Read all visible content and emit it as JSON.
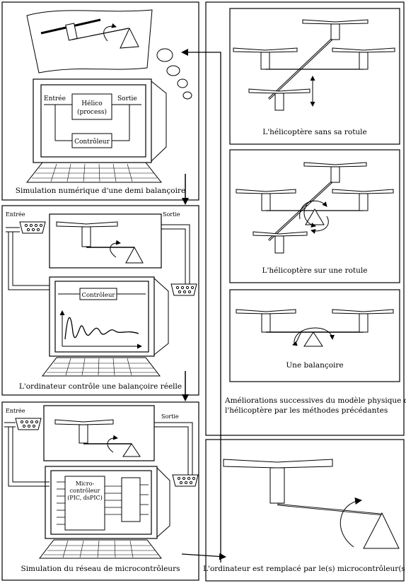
{
  "panels": {
    "sim_numeric": {
      "caption": "Simulation numérique d'une demi balançoire",
      "input_label": "Entrée",
      "output_label": "Sortie",
      "process_label_line1": "Hélico",
      "process_label_line2": "(process)",
      "controller_label": "Contrôleur"
    },
    "real_seesaw": {
      "caption": "L'ordinateur contrôle une balançoire réelle",
      "input_label": "Entrée",
      "output_label": "Sortie",
      "controller_label": "Contrôleur"
    },
    "microcontroller_net": {
      "caption": "Simulation du réseau de microcontrôleurs",
      "input_label": "Entrée",
      "output_label": "Sortie",
      "chip_line1": "Micro-",
      "chip_line2": "contrôleur",
      "chip_line3": "(PIC, dsPIC)"
    },
    "right_column": {
      "helicopter_no_joint": "L'hélicoptère sans sa rotule",
      "helicopter_joint": "L'hélicoptère sur une rotule",
      "seesaw": "Une balançoire",
      "improvements_line1": "Améliorations successives du modèle physique de",
      "improvements_line2": "l'hélicoptère par les méthodes précédantes"
    },
    "replacement": {
      "caption": "L'ordinateur est remplacé par le(s) microcontrôleur(s)"
    }
  }
}
